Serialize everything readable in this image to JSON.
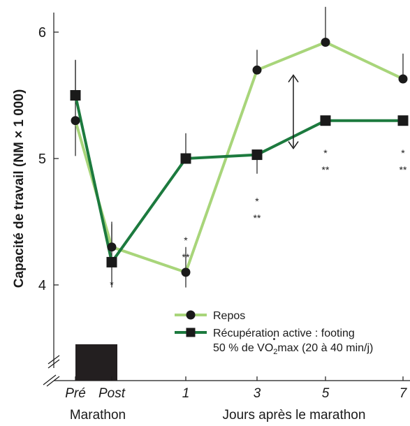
{
  "chart_data": {
    "type": "line",
    "ylabel": "Capacité de travail (NM × 1 000)",
    "yticks": [
      "4",
      "5",
      "6"
    ],
    "ylim": [
      3.5,
      6.25
    ],
    "categories": [
      "Pré",
      "Post",
      "1",
      "3",
      "5",
      "7"
    ],
    "category_italic": true,
    "xlabel_left": "Marathon",
    "xlabel_right": "Jours après le marathon",
    "grid": false,
    "legend_position": "bottom-right",
    "series": [
      {
        "name": "Repos",
        "color": "#a8d57a",
        "marker": "circle",
        "values": [
          5.3,
          4.3,
          4.1,
          5.7,
          5.92,
          5.63
        ],
        "error_plus": [
          0.48,
          0.2,
          0.2,
          0.16,
          0.28,
          0.2
        ],
        "error_minus": [
          0.28,
          0.0,
          0.12,
          0.0,
          0.0,
          0.0
        ]
      },
      {
        "name_line1": "Récupération active : footing",
        "name_line2_parts": [
          "50 % de ",
          "V",
          "O",
          "2",
          "max (20 à 40 min/j)"
        ],
        "color": "#1c7a3e",
        "marker": "square",
        "values": [
          5.5,
          4.18,
          5.0,
          5.03,
          5.3,
          5.3
        ],
        "error_plus": [
          0.28,
          0.3,
          0.2,
          0.0,
          0.0,
          0.0
        ],
        "error_minus": [
          0.0,
          0.2,
          0.0,
          0.15,
          0.0,
          0.0
        ]
      }
    ],
    "annotations": [
      {
        "category": "Post",
        "value": 4.02,
        "lines": [
          "*"
        ]
      },
      {
        "category": "1",
        "value": 4.37,
        "lines": [
          "*",
          "**"
        ]
      },
      {
        "category": "3",
        "value": 4.68,
        "lines": [
          "*",
          "**"
        ]
      },
      {
        "category": "5",
        "value": 5.06,
        "lines": [
          "*",
          "**"
        ]
      },
      {
        "category": "7",
        "value": 5.06,
        "lines": [
          "*",
          "**"
        ]
      }
    ],
    "difference_arrow": {
      "category_between": [
        "3",
        "5"
      ],
      "from": 5.08,
      "to": 5.66
    },
    "marathon_bar": {
      "from_category": "Pré",
      "to_category": "Post",
      "color": "#231f20"
    }
  }
}
